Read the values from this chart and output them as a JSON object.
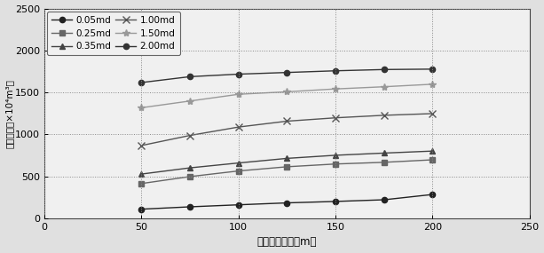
{
  "x_values": [
    50,
    75,
    100,
    125,
    150,
    175,
    200
  ],
  "series": [
    {
      "label": "0.05md",
      "marker": "o",
      "color": "#222222",
      "linestyle": "-",
      "markersize": 4.5,
      "markerfacecolor": "#222222",
      "linewidth": 1.0,
      "values": [
        110,
        138,
        162,
        185,
        202,
        222,
        285
      ]
    },
    {
      "label": "0.25md",
      "marker": "s",
      "color": "#666666",
      "linestyle": "-",
      "markersize": 4.5,
      "markerfacecolor": "#666666",
      "linewidth": 1.0,
      "values": [
        415,
        498,
        565,
        615,
        648,
        668,
        698
      ]
    },
    {
      "label": "0.35md",
      "marker": "^",
      "color": "#444444",
      "linestyle": "-",
      "markersize": 4.5,
      "markerfacecolor": "#444444",
      "linewidth": 1.0,
      "values": [
        528,
        602,
        660,
        715,
        752,
        778,
        802
      ]
    },
    {
      "label": "1.00md",
      "marker": "x",
      "color": "#555555",
      "linestyle": "-",
      "markersize": 5.5,
      "markerfacecolor": "#555555",
      "linewidth": 1.0,
      "values": [
        868,
        988,
        1088,
        1158,
        1198,
        1228,
        1248
      ]
    },
    {
      "label": "1.50md",
      "marker": "*",
      "color": "#999999",
      "linestyle": "-",
      "markersize": 6,
      "markerfacecolor": "#999999",
      "linewidth": 1.0,
      "values": [
        1318,
        1398,
        1478,
        1508,
        1542,
        1568,
        1598
      ]
    },
    {
      "label": "2.00md",
      "marker": "o",
      "color": "#333333",
      "linestyle": "-",
      "markersize": 4.5,
      "markerfacecolor": "#333333",
      "linewidth": 1.0,
      "values": [
        1618,
        1688,
        1718,
        1738,
        1758,
        1773,
        1778
      ]
    }
  ],
  "legend_order": [
    0,
    1,
    2,
    3,
    4,
    5
  ],
  "xlabel": "支撑裂缝半长（m）",
  "ylabel": "一年产量（×10⁴m³）",
  "xlim": [
    0,
    250
  ],
  "ylim": [
    0,
    2500
  ],
  "xticks": [
    0,
    50,
    100,
    150,
    200,
    250
  ],
  "yticks": [
    0,
    500,
    1000,
    1500,
    2000,
    2500
  ],
  "fig_facecolor": "#e0e0e0",
  "ax_facecolor": "#f0f0f0"
}
